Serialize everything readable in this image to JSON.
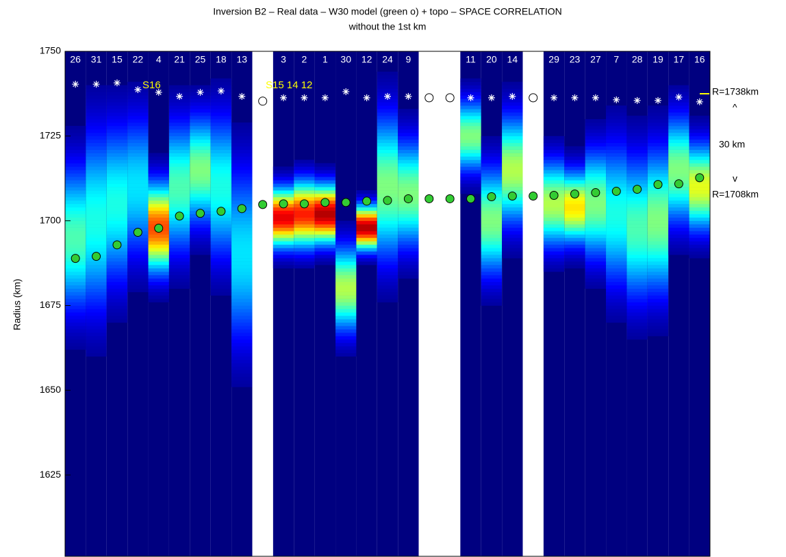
{
  "chart_data": {
    "type": "heatmap",
    "title": "Inversion B2 –  Real data  –   W30 model  (green o)  +   topo    –    SPACE CORRELATION",
    "subtitle": "without  the  1st  km",
    "y_label": "Radius (km)",
    "ylim": [
      1601,
      1750
    ],
    "yticks": [
      1625,
      1650,
      1675,
      1700,
      1725,
      1750
    ],
    "categories": [
      "26",
      "31",
      "15",
      "22",
      "4",
      "21",
      "25",
      "18",
      "13",
      null,
      "3",
      "2",
      "1",
      "30",
      "12",
      "24",
      "9",
      null,
      null,
      "11",
      "20",
      "14",
      null,
      "29",
      "23",
      "27",
      "7",
      "28",
      "19",
      "17",
      "16"
    ],
    "columns": [
      {
        "center": 1695,
        "width": 20,
        "peak": 0.45
      },
      {
        "center": 1700,
        "width": 25,
        "peak": 0.4
      },
      {
        "center": 1705,
        "width": 22,
        "peak": 0.4
      },
      {
        "center": 1710,
        "width": 20,
        "peak": 0.35
      },
      {
        "center": 1698,
        "width": 12,
        "peak": 0.8
      },
      {
        "center": 1710,
        "width": 18,
        "peak": 0.45
      },
      {
        "center": 1715,
        "width": 15,
        "peak": 0.5
      },
      {
        "center": 1710,
        "width": 20,
        "peak": 0.4
      },
      {
        "center": 1690,
        "width": 25,
        "peak": 0.35
      },
      null,
      {
        "center": 1701,
        "width": 8,
        "peak": 0.9
      },
      {
        "center": 1702,
        "width": 9,
        "peak": 0.85
      },
      {
        "center": 1702,
        "width": 8,
        "peak": 0.95
      },
      {
        "center": 1680,
        "width": 12,
        "peak": 0.55
      },
      {
        "center": 1698,
        "width": 6,
        "peak": 0.95
      },
      {
        "center": 1710,
        "width": 20,
        "peak": 0.5
      },
      {
        "center": 1708,
        "width": 15,
        "peak": 0.5
      },
      null,
      null,
      {
        "center": 1725,
        "width": 10,
        "peak": 0.5
      },
      {
        "center": 1700,
        "width": 15,
        "peak": 0.5
      },
      {
        "center": 1715,
        "width": 15,
        "peak": 0.55
      },
      null,
      {
        "center": 1705,
        "width": 12,
        "peak": 0.55
      },
      {
        "center": 1704,
        "width": 10,
        "peak": 0.65
      },
      {
        "center": 1705,
        "width": 15,
        "peak": 0.5
      },
      {
        "center": 1702,
        "width": 20,
        "peak": 0.4
      },
      {
        "center": 1698,
        "width": 20,
        "peak": 0.45
      },
      {
        "center": 1700,
        "width": 20,
        "peak": 0.5
      },
      {
        "center": 1715,
        "width": 15,
        "peak": 0.5
      },
      {
        "center": 1710,
        "width": 12,
        "peak": 0.6
      }
    ],
    "series": [
      {
        "color": "#ffffff",
        "values": [
          1740.3,
          1740.3,
          1740.7,
          1738.7,
          1737.9,
          1736.7,
          1737.9,
          1738.3,
          1736.7,
          1735.3,
          1736.3,
          1736.3,
          1736.3,
          1738.1,
          1736.3,
          1736.7,
          1736.7,
          1736.3,
          1736.3,
          1736.3,
          1736.3,
          1736.7,
          1736.3,
          1736.3,
          1736.3,
          1736.3,
          1735.7,
          1735.5,
          1735.5,
          1736.5,
          1735.1
        ]
      },
      {
        "color": "#33cc33",
        "values": [
          1688.9,
          1689.5,
          1692.9,
          1696.6,
          1697.8,
          1701.4,
          1702.2,
          1702.8,
          1703.6,
          1704.8,
          1705.0,
          1705.0,
          1705.4,
          1705.4,
          1705.8,
          1706.0,
          1706.5,
          1706.5,
          1706.5,
          1706.5,
          1707.1,
          1707.3,
          1707.3,
          1707.5,
          1707.9,
          1708.3,
          1708.7,
          1709.3,
          1710.7,
          1710.9,
          1712.7
        ]
      }
    ],
    "annotations": {
      "r_top": "R=1738km",
      "up": "^",
      "span": "30 km",
      "down": "v",
      "r_bottom": "R=1708km",
      "s16": "S16",
      "s15": "S15 14 12"
    }
  }
}
